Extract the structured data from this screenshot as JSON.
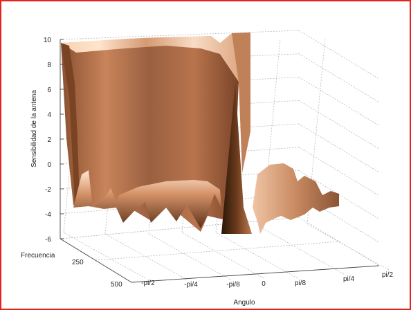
{
  "chart_data": {
    "type": "surface",
    "title": "",
    "zlabel": "Sensibilidad de la antena",
    "xlabel": "Angulo",
    "ylabel": "Frecuencia",
    "z_ticks": [
      "-6",
      "-4",
      "-2",
      "0",
      "2",
      "4",
      "6",
      "8",
      "10"
    ],
    "z_tick_values": [
      -6,
      -4,
      -2,
      0,
      2,
      4,
      6,
      8,
      10
    ],
    "zlim": [
      -6,
      10
    ],
    "x_ticks": [
      "-pi/2",
      "-pi/4",
      "-pi/8",
      "0",
      "pi/8",
      "pi/4",
      "pi/2"
    ],
    "y_ticks": [
      "250",
      "500"
    ],
    "y_tick_values": [
      250,
      500
    ],
    "grid": true,
    "colormap": "copper",
    "colors": {
      "surface_light": "#f4c8a8",
      "surface_mid": "#b07048",
      "surface_dark": "#3a2010",
      "frame": "#e8231c",
      "grid": "#b8b8b8"
    },
    "profile_at_front": {
      "angle": [
        "-pi/2",
        "-pi/4",
        "-pi/8",
        "0",
        "pi/8",
        "pi/4",
        "pi/2"
      ],
      "sensitivity": [
        -3,
        -3.5,
        -4,
        -4,
        1,
        -2.5,
        -2
      ]
    },
    "peak_sensitivity": 10
  }
}
